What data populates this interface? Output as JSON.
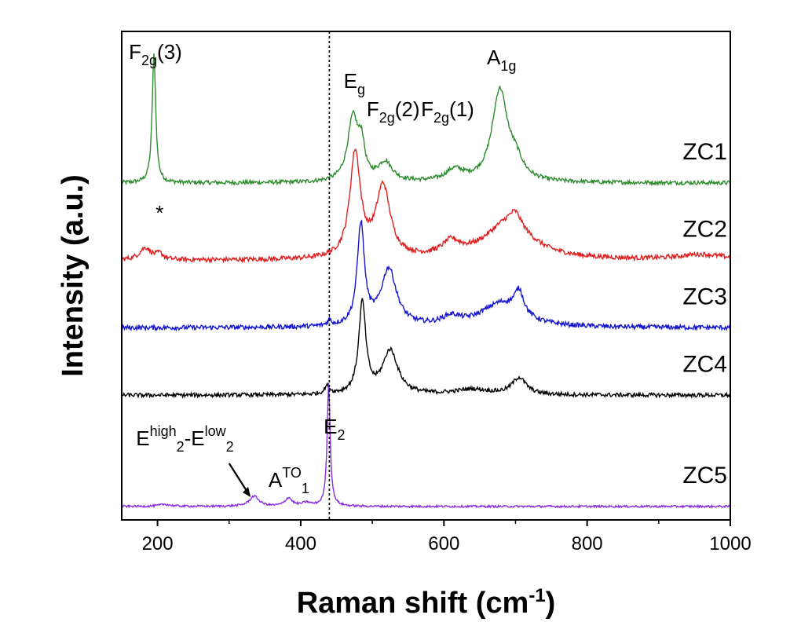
{
  "chart_data": {
    "type": "line",
    "xlabel": "Raman shift (cm",
    "xlabel_sup": "-1",
    "xlabel_end": ")",
    "ylabel": "Intensity (a.u.)",
    "xlim": [
      150,
      1000
    ],
    "xticks": [
      200,
      400,
      600,
      800,
      1000
    ],
    "y_ticks_shown": false,
    "reference_line_x": 440,
    "series": [
      {
        "name": "ZC1",
        "color": "#2e8b2e",
        "baseline": 5.0,
        "noise": 0.03,
        "peaks": [
          [
            195,
            1.9,
            3
          ],
          [
            473,
            0.95,
            9
          ],
          [
            485,
            0.45,
            5
          ],
          [
            518,
            0.28,
            12
          ],
          [
            615,
            0.17,
            15
          ],
          [
            678,
            1.35,
            13
          ],
          [
            700,
            0.25,
            12
          ]
        ]
      },
      {
        "name": "ZC2",
        "color": "#e02020",
        "baseline": 3.85,
        "noise": 0.035,
        "peaks": [
          [
            183,
            0.18,
            10
          ],
          [
            203,
            0.08,
            6
          ],
          [
            476,
            1.55,
            9
          ],
          [
            515,
            1.05,
            12
          ],
          [
            610,
            0.2,
            15
          ],
          [
            690,
            0.55,
            40
          ],
          [
            700,
            0.2,
            10
          ],
          [
            960,
            0.08,
            40
          ]
        ]
      },
      {
        "name": "ZC3",
        "color": "#1515d0",
        "baseline": 2.85,
        "noise": 0.035,
        "peaks": [
          [
            440,
            0.08,
            3
          ],
          [
            484,
            1.5,
            6
          ],
          [
            523,
            0.85,
            13
          ],
          [
            610,
            0.12,
            15
          ],
          [
            680,
            0.35,
            35
          ],
          [
            705,
            0.35,
            8
          ]
        ]
      },
      {
        "name": "ZC4",
        "color": "#000000",
        "baseline": 1.85,
        "noise": 0.03,
        "peaks": [
          [
            437,
            0.12,
            4
          ],
          [
            486,
            1.35,
            6
          ],
          [
            525,
            0.65,
            13
          ],
          [
            640,
            0.08,
            30
          ],
          [
            705,
            0.25,
            12
          ]
        ]
      },
      {
        "name": "ZC5",
        "color": "#8a2be2",
        "baseline": 0.2,
        "noise": 0.015,
        "peaks": [
          [
            210,
            0.03,
            10
          ],
          [
            335,
            0.15,
            8
          ],
          [
            383,
            0.12,
            6
          ],
          [
            408,
            0.05,
            8
          ],
          [
            439,
            1.8,
            2.6
          ]
        ]
      }
    ],
    "annotations": [
      {
        "base": "F",
        "sub": "2g",
        "tail": "(3)",
        "x": 195,
        "series_index": 0
      },
      {
        "base": "E",
        "sub": "g",
        "tail": "",
        "x": 475,
        "series_index": 0
      },
      {
        "base": "F",
        "sub": "2g",
        "tail": "(2)",
        "x": 520,
        "series_index": 0
      },
      {
        "base": "F",
        "sub": "2g",
        "tail": "(1)",
        "x": 610,
        "series_index": 0
      },
      {
        "base": "A",
        "sub": "1g",
        "tail": "",
        "x": 678,
        "series_index": 0
      },
      {
        "base": "*",
        "sub": "",
        "tail": "",
        "x": 203,
        "series_index": 1
      },
      {
        "base": "E",
        "sub": "2",
        "sup": "high",
        "mid": "-E",
        "sub2": "2",
        "sup2": "low",
        "x": 300,
        "series_index": 4,
        "arrow_to_x": 330
      },
      {
        "base": "A",
        "sub": "1",
        "sup": "TO",
        "x": 380,
        "series_index": 4
      },
      {
        "base": "E",
        "sub": "2",
        "tail": "",
        "x": 440,
        "series_index": 4
      }
    ]
  }
}
